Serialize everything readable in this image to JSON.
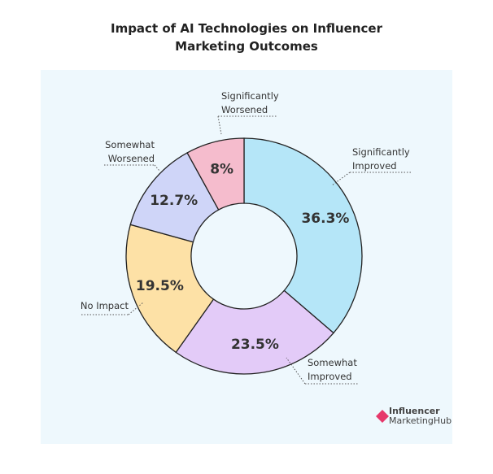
{
  "chart_data": {
    "type": "donut",
    "title": "Impact of AI Technologies on Influencer Marketing Outcomes",
    "categories": [
      "Significantly Improved",
      "Somewhat Improved",
      "No Impact",
      "Somewhat Worsened",
      "Significantly Worsened"
    ],
    "values": [
      36.3,
      23.5,
      19.5,
      12.7,
      8
    ],
    "value_labels": [
      "36.3%",
      "23.5%",
      "19.5%",
      "12.7%",
      "8%"
    ],
    "colors": [
      "#b5e6f8",
      "#e3cbf8",
      "#fde1a6",
      "#cfd5f8",
      "#f5bccd"
    ]
  },
  "brand": {
    "line1": "Influencer",
    "line2": "MarketingHub"
  }
}
